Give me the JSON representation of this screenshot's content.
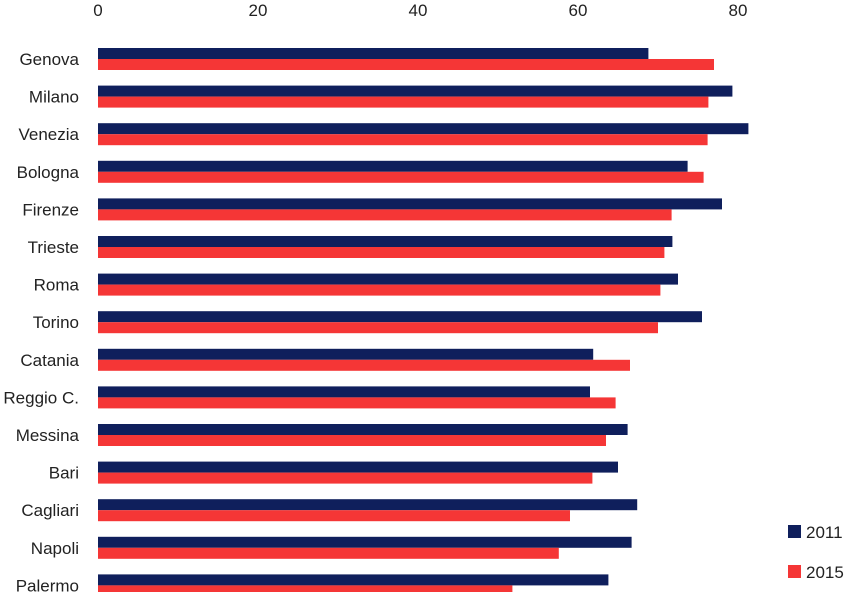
{
  "chart_data": {
    "type": "bar",
    "orientation": "horizontal",
    "categories": [
      "Genova",
      "Milano",
      "Venezia",
      "Bologna",
      "Firenze",
      "Trieste",
      "Roma",
      "Torino",
      "Catania",
      "Reggio C.",
      "Messina",
      "Bari",
      "Cagliari",
      "Napoli",
      "Palermo"
    ],
    "series": [
      {
        "name": "2011",
        "color": "#0f1f5c",
        "values": [
          68.8,
          79.3,
          81.3,
          73.7,
          78.0,
          71.8,
          72.5,
          75.5,
          61.9,
          61.5,
          66.2,
          65.0,
          67.4,
          66.7,
          63.8
        ]
      },
      {
        "name": "2015",
        "color": "#f53636",
        "values": [
          77.0,
          76.3,
          76.2,
          75.7,
          71.7,
          70.8,
          70.3,
          70.0,
          66.5,
          64.7,
          63.5,
          61.8,
          59.0,
          57.6,
          51.8
        ]
      }
    ],
    "x_ticks": [
      "0",
      "20",
      "40",
      "60",
      "80"
    ],
    "xlim": [
      0,
      85
    ],
    "axis_position": "top",
    "grid": false,
    "legend_position": "bottom-right"
  }
}
